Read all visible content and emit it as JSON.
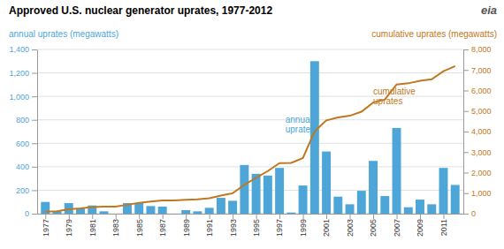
{
  "chart_data": {
    "type": "bar",
    "title": "Approved U.S. nuclear generator uprates, 1977-2012",
    "ylabel": "annual uprates (megawatts)",
    "y2label": "cumulative uprates (megawatts)",
    "x": [
      1977,
      1978,
      1979,
      1980,
      1981,
      1982,
      1983,
      1984,
      1985,
      1986,
      1987,
      1988,
      1989,
      1990,
      1991,
      1992,
      1993,
      1994,
      1995,
      1996,
      1997,
      1998,
      1999,
      2000,
      2001,
      2002,
      2003,
      2004,
      2005,
      2006,
      2007,
      2008,
      2009,
      2010,
      2011,
      2012
    ],
    "series": [
      {
        "type": "bar",
        "color": "#4da6d7",
        "values": [
          100,
          20,
          90,
          45,
          70,
          20,
          0,
          90,
          90,
          65,
          60,
          0,
          30,
          20,
          50,
          135,
          110,
          415,
          340,
          325,
          390,
          10,
          240,
          1300,
          530,
          145,
          80,
          195,
          450,
          150,
          730,
          55,
          120,
          80,
          390,
          245
        ]
      },
      {
        "type": "line",
        "color": "#c07820",
        "axis": "y2",
        "values": [
          100,
          120,
          210,
          255,
          325,
          345,
          345,
          435,
          525,
          590,
          650,
          650,
          680,
          700,
          750,
          885,
          995,
          1410,
          1750,
          2075,
          2465,
          2475,
          2715,
          4015,
          4545,
          4690,
          4770,
          4965,
          5415,
          5565,
          6295,
          6350,
          6470,
          6550,
          6940,
          7185
        ]
      }
    ],
    "xlim": [
      1976.3,
      2012.7
    ],
    "xticks": [
      1977,
      1979,
      1981,
      1983,
      1985,
      1987,
      1989,
      1991,
      1993,
      1995,
      1997,
      1999,
      2001,
      2003,
      2005,
      2007,
      2009,
      2011
    ],
    "ylim": [
      0,
      1400
    ],
    "yticks": [
      0,
      200,
      400,
      600,
      800,
      {
        "value": 1000,
        "label": "1,000"
      },
      {
        "value": 1200,
        "label": "1,200"
      },
      {
        "value": 1400,
        "label": "1,400"
      }
    ],
    "y2lim": [
      0,
      8000
    ],
    "y2ticks": [
      0,
      {
        "value": 1000,
        "label": "1,000"
      },
      {
        "value": 2000,
        "label": "2,000"
      },
      {
        "value": 3000,
        "label": "3,000"
      },
      {
        "value": 4000,
        "label": "4,000"
      },
      {
        "value": 5000,
        "label": "5,000"
      },
      {
        "value": 6000,
        "label": "6,000"
      },
      {
        "value": 7000,
        "label": "7,000"
      },
      {
        "value": 8000,
        "label": "8,000"
      }
    ],
    "grid": true,
    "annotations": [
      {
        "text": "annual\nuprates",
        "x": 1997.5,
        "y": 760,
        "axis": "y"
      },
      {
        "text": "cumulative\nuprates",
        "x": 2005.0,
        "y": 5700,
        "axis": "y2"
      },
      {
        "text": "eia"
      }
    ]
  }
}
